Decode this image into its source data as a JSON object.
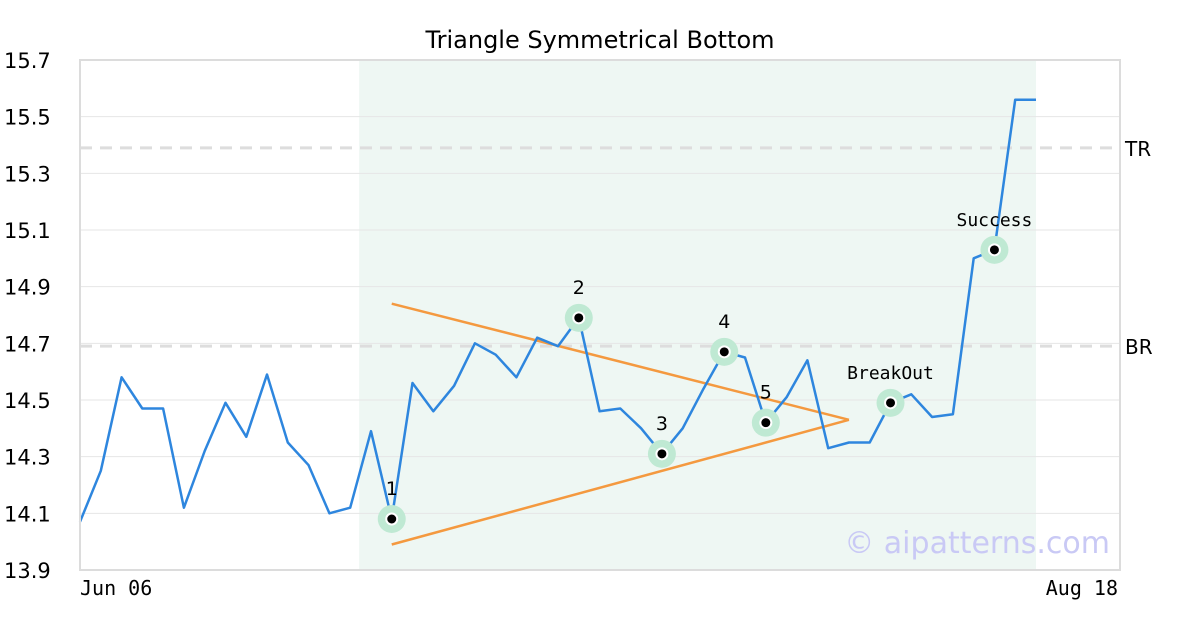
{
  "chart_data": {
    "type": "line",
    "title": "Triangle Symmetrical Bottom",
    "xlabel": "",
    "ylabel": "",
    "x_tick_labels": [
      "Jun 06",
      "Aug 18"
    ],
    "y_ticks": [
      "13.9",
      "14.1",
      "14.3",
      "14.5",
      "14.7",
      "14.9",
      "15.1",
      "15.3",
      "15.5",
      "15.7"
    ],
    "ylim": [
      13.9,
      15.7
    ],
    "grid": true,
    "series": [
      {
        "values": [
          14.07,
          14.25,
          14.58,
          14.47,
          14.47,
          14.12,
          14.32,
          14.49,
          14.37,
          14.59,
          14.35,
          14.27,
          14.1,
          14.12,
          14.39,
          14.08,
          14.56,
          14.46,
          14.55,
          14.7,
          14.66,
          14.58,
          14.72,
          14.69,
          14.79,
          14.46,
          14.47,
          14.4,
          14.31,
          14.4,
          14.54,
          14.67,
          14.65,
          14.42,
          14.51,
          14.64,
          14.33,
          14.35,
          14.35,
          14.49,
          14.52,
          14.44,
          14.45,
          15.0,
          15.03,
          15.56,
          15.56
        ],
        "color": "#2e86de"
      }
    ],
    "levels": [
      {
        "label": "TR",
        "value": 15.39
      },
      {
        "label": "BR",
        "value": 14.69
      }
    ],
    "pattern_region": {
      "start_index": 13,
      "end_index": 46,
      "color": "#eef7f3"
    },
    "trendlines": [
      {
        "from_index": 15,
        "from_value": 14.84,
        "to_index": 37,
        "to_value": 14.43,
        "color": "#f4993f"
      },
      {
        "from_index": 15,
        "from_value": 13.99,
        "to_index": 37,
        "to_value": 14.43,
        "color": "#f4993f"
      }
    ],
    "pattern_points": [
      {
        "label": "1",
        "index": 15,
        "value": 14.08
      },
      {
        "label": "2",
        "index": 24,
        "value": 14.79
      },
      {
        "label": "3",
        "index": 28,
        "value": 14.31
      },
      {
        "label": "4",
        "index": 31,
        "value": 14.67
      },
      {
        "label": "5",
        "index": 33,
        "value": 14.42
      },
      {
        "label": "BreakOut",
        "index": 39,
        "value": 14.49
      },
      {
        "label": "Success",
        "index": 44,
        "value": 15.03
      }
    ],
    "watermark": "© aipatterns.com"
  }
}
